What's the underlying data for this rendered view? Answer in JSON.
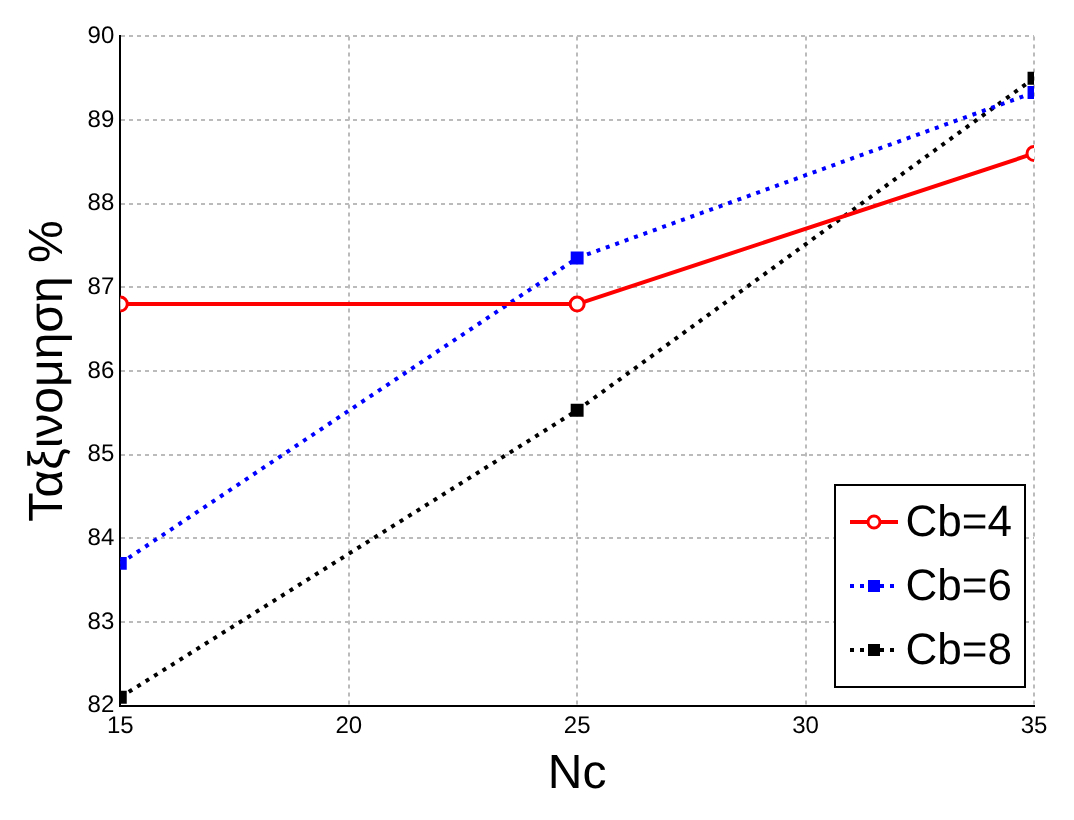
{
  "chart_data": {
    "type": "line",
    "xlabel": "Nc",
    "ylabel": "Ταξινομηση %",
    "x": [
      15,
      25,
      35
    ],
    "xlim": [
      15,
      35
    ],
    "xticks": [
      15,
      20,
      25,
      30,
      35
    ],
    "ylim": [
      82,
      90
    ],
    "yticks": [
      82,
      83,
      84,
      85,
      86,
      87,
      88,
      89,
      90
    ],
    "grid": true,
    "legend": "bottom right",
    "series": [
      {
        "name": "Cb=4",
        "color": "#ff0000",
        "marker": "circle",
        "line_style": "solid",
        "values": [
          86.8,
          86.8,
          88.6
        ]
      },
      {
        "name": "Cb=6",
        "color": "#0000ff",
        "marker": "square",
        "line_style": "dotted",
        "values": [
          83.7,
          87.35,
          89.33
        ]
      },
      {
        "name": "Cb=8",
        "color": "#000000",
        "marker": "square",
        "line_style": "dotted",
        "values": [
          82.1,
          85.53,
          89.5
        ]
      }
    ]
  }
}
